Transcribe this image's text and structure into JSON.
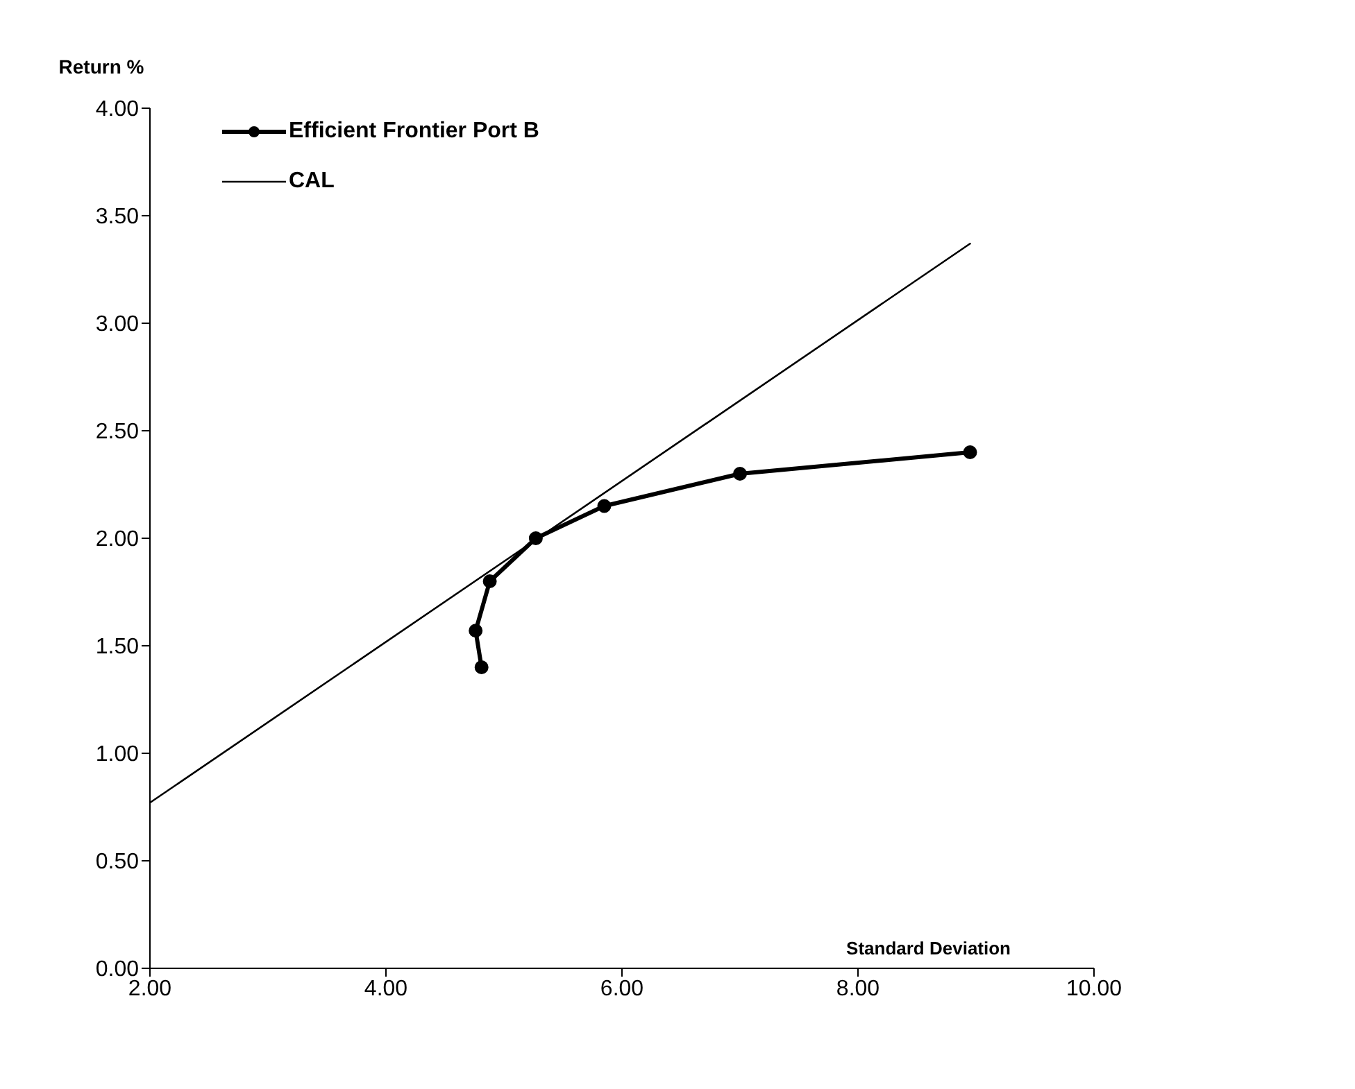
{
  "chart_data": {
    "type": "line",
    "xlabel": "Standard Deviation",
    "ylabel": "Return %",
    "xlim": [
      2,
      10
    ],
    "xticks": [
      {
        "value": 2,
        "label": "2.00"
      },
      {
        "value": 4,
        "label": "4.00"
      },
      {
        "value": 6,
        "label": "6.00"
      },
      {
        "value": 8,
        "label": "8.00"
      },
      {
        "value": 10,
        "label": "10.00"
      }
    ],
    "ylim": [
      0,
      4
    ],
    "yticks": [
      {
        "value": 0,
        "label": "0.00"
      },
      {
        "value": 0.5,
        "label": "0.50"
      },
      {
        "value": 1,
        "label": "1.00"
      },
      {
        "value": 1.5,
        "label": "1.50"
      },
      {
        "value": 2,
        "label": "2.00"
      },
      {
        "value": 2.5,
        "label": "2.50"
      },
      {
        "value": 3,
        "label": "3.00"
      },
      {
        "value": 3.5,
        "label": "3.50"
      },
      {
        "value": 4,
        "label": "4.00"
      }
    ],
    "grid": false,
    "legend": "top left",
    "series": [
      {
        "name": "Efficient Frontier Port B",
        "color": "#000000",
        "marker": "circle",
        "x": [
          4.81,
          4.76,
          4.88,
          5.27,
          5.85,
          7.0,
          8.95
        ],
        "values": [
          1.4,
          1.57,
          1.8,
          2.0,
          2.15,
          2.3,
          2.4
        ]
      },
      {
        "name": "CAL",
        "color": "#000000",
        "marker": "none",
        "x": [
          2,
          8.95
        ],
        "values": [
          0.77,
          3.37
        ]
      }
    ]
  }
}
